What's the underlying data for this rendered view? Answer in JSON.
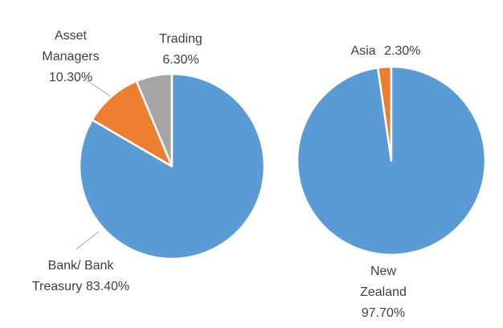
{
  "chart_data": [
    {
      "type": "pie",
      "categories": [
        "Bank/ Bank Treasury",
        "Asset Managers",
        "Trading"
      ],
      "values": [
        83.4,
        10.3,
        6.3
      ],
      "value_labels": [
        "83.40%",
        "10.30%",
        "6.30%"
      ],
      "colors": [
        "#5b9bd5",
        "#ed7d31",
        "#a5a5a5"
      ]
    },
    {
      "type": "pie",
      "categories": [
        "New Zealand",
        "Asia"
      ],
      "values": [
        97.7,
        2.3
      ],
      "value_labels": [
        "97.70%",
        "2.30%"
      ],
      "colors": [
        "#5b9bd5",
        "#ed7d31"
      ]
    }
  ]
}
